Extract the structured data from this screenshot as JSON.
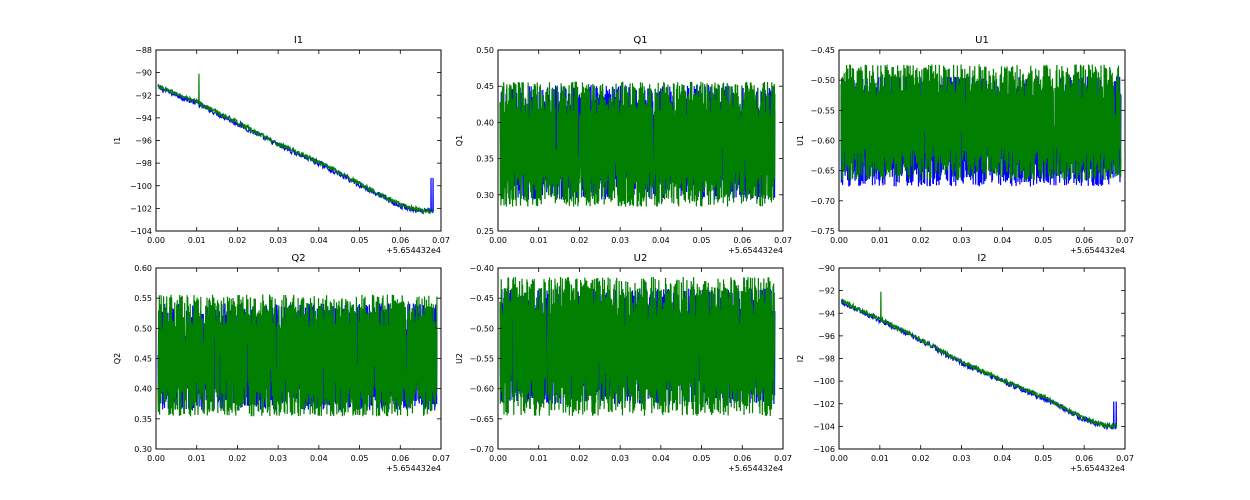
{
  "chart_data": [
    {
      "type": "line",
      "title": "I1",
      "ylabel": "I1",
      "xlabel": "",
      "offset_text": "+5.654432e4",
      "xlim": [
        0.0,
        0.07
      ],
      "ylim": [
        -104,
        -88
      ],
      "xticks": [
        "0.00",
        "0.01",
        "0.02",
        "0.03",
        "0.04",
        "0.05",
        "0.06",
        "0.07"
      ],
      "yticks": [
        "−88",
        "−90",
        "−92",
        "−94",
        "−96",
        "−98",
        "−100",
        "−102",
        "−104"
      ],
      "pattern": "trend",
      "series": [
        {
          "color": "#0000ff",
          "x": [
            0.0005,
            0.01,
            0.02,
            0.03,
            0.04,
            0.05,
            0.06,
            0.065,
            0.068
          ],
          "y": [
            -91.3,
            -92.7,
            -94.5,
            -96.4,
            -98.0,
            -99.9,
            -101.8,
            -102.3,
            -102.2
          ],
          "noise": 0.25,
          "spikes": [
            [
              0.0675,
              -99.3
            ],
            [
              0.068,
              -99.3
            ]
          ]
        },
        {
          "color": "#007f00",
          "x": [
            0.0005,
            0.01,
            0.02,
            0.03,
            0.04,
            0.05,
            0.06,
            0.065,
            0.068
          ],
          "y": [
            -91.2,
            -92.6,
            -94.4,
            -96.3,
            -97.9,
            -99.8,
            -101.7,
            -102.2,
            -102.2
          ],
          "noise": 0.2,
          "spikes": [
            [
              0.0105,
              -90.1
            ]
          ]
        }
      ]
    },
    {
      "type": "line",
      "title": "Q1",
      "ylabel": "Q1",
      "xlabel": "",
      "offset_text": "+5.654432e4",
      "xlim": [
        0.0,
        0.07
      ],
      "ylim": [
        0.25,
        0.5
      ],
      "xticks": [
        "0.00",
        "0.01",
        "0.02",
        "0.03",
        "0.04",
        "0.05",
        "0.06",
        "0.07"
      ],
      "yticks": [
        "0.50",
        "0.45",
        "0.40",
        "0.35",
        "0.30",
        "0.25"
      ],
      "pattern": "noise",
      "series": [
        {
          "color": "#0000ff",
          "x": [
            0.0005,
            0.068
          ],
          "range": [
            0.29,
            0.455
          ]
        },
        {
          "color": "#007f00",
          "x": [
            0.0005,
            0.068
          ],
          "range": [
            0.28,
            0.46
          ]
        }
      ]
    },
    {
      "type": "line",
      "title": "U1",
      "ylabel": "U1",
      "xlabel": "",
      "offset_text": "+5.654432e4",
      "xlim": [
        0.0,
        0.07
      ],
      "ylim": [
        -0.75,
        -0.45
      ],
      "xticks": [
        "0.00",
        "0.01",
        "0.02",
        "0.03",
        "0.04",
        "0.05",
        "0.06",
        "0.07"
      ],
      "yticks": [
        "−0.45",
        "−0.50",
        "−0.55",
        "−0.60",
        "−0.65",
        "−0.70",
        "−0.75"
      ],
      "pattern": "noise",
      "series": [
        {
          "color": "#0000ff",
          "x": [
            0.0005,
            0.069
          ],
          "range": [
            -0.68,
            -0.49
          ]
        },
        {
          "color": "#007f00",
          "x": [
            0.0005,
            0.069
          ],
          "range": [
            -0.67,
            -0.47
          ]
        }
      ]
    },
    {
      "type": "line",
      "title": "Q2",
      "ylabel": "Q2",
      "xlabel": "",
      "offset_text": "+5.654432e4",
      "xlim": [
        0.0,
        0.07
      ],
      "ylim": [
        0.3,
        0.6
      ],
      "xticks": [
        "0.00",
        "0.01",
        "0.02",
        "0.03",
        "0.04",
        "0.05",
        "0.06",
        "0.07"
      ],
      "yticks": [
        "0.60",
        "0.55",
        "0.50",
        "0.45",
        "0.40",
        "0.35",
        "0.30"
      ],
      "pattern": "noise",
      "series": [
        {
          "color": "#0000ff",
          "x": [
            0.0005,
            0.069
          ],
          "range": [
            0.36,
            0.545
          ]
        },
        {
          "color": "#007f00",
          "x": [
            0.0005,
            0.069
          ],
          "range": [
            0.35,
            0.56
          ]
        }
      ]
    },
    {
      "type": "line",
      "title": "U2",
      "ylabel": "U2",
      "xlabel": "",
      "offset_text": "+5.654432e4",
      "xlim": [
        0.0,
        0.07
      ],
      "ylim": [
        -0.7,
        -0.4
      ],
      "xticks": [
        "0.00",
        "0.01",
        "0.02",
        "0.03",
        "0.04",
        "0.05",
        "0.06",
        "0.07"
      ],
      "yticks": [
        "−0.40",
        "−0.45",
        "−0.50",
        "−0.55",
        "−0.60",
        "−0.65",
        "−0.70"
      ],
      "pattern": "noise",
      "series": [
        {
          "color": "#0000ff",
          "x": [
            0.0005,
            0.068
          ],
          "range": [
            -0.63,
            -0.43
          ]
        },
        {
          "color": "#007f00",
          "x": [
            0.0005,
            0.068
          ],
          "range": [
            -0.65,
            -0.41
          ]
        }
      ]
    },
    {
      "type": "line",
      "title": "I2",
      "ylabel": "I2",
      "xlabel": "",
      "offset_text": "+5.654432e4",
      "xlim": [
        0.0,
        0.07
      ],
      "ylim": [
        -106,
        -90
      ],
      "xticks": [
        "0.00",
        "0.01",
        "0.02",
        "0.03",
        "0.04",
        "0.05",
        "0.06",
        "0.07"
      ],
      "yticks": [
        "−90",
        "−92",
        "−94",
        "−96",
        "−98",
        "−100",
        "−102",
        "−104",
        "−106"
      ],
      "pattern": "trend",
      "series": [
        {
          "color": "#0000ff",
          "x": [
            0.0005,
            0.01,
            0.02,
            0.03,
            0.04,
            0.05,
            0.06,
            0.065,
            0.068
          ],
          "y": [
            -93.0,
            -94.6,
            -96.4,
            -98.4,
            -100.0,
            -101.5,
            -103.4,
            -104.0,
            -104.0
          ],
          "noise": 0.25,
          "spikes": [
            [
              0.0672,
              -101.8
            ],
            [
              0.0678,
              -101.8
            ]
          ]
        },
        {
          "color": "#007f00",
          "x": [
            0.0005,
            0.01,
            0.02,
            0.03,
            0.04,
            0.05,
            0.06,
            0.065,
            0.068
          ],
          "y": [
            -92.9,
            -94.5,
            -96.3,
            -98.3,
            -99.9,
            -101.4,
            -103.3,
            -103.9,
            -104.0
          ],
          "noise": 0.2,
          "spikes": [
            [
              0.0102,
              -92.1
            ]
          ]
        }
      ]
    }
  ]
}
